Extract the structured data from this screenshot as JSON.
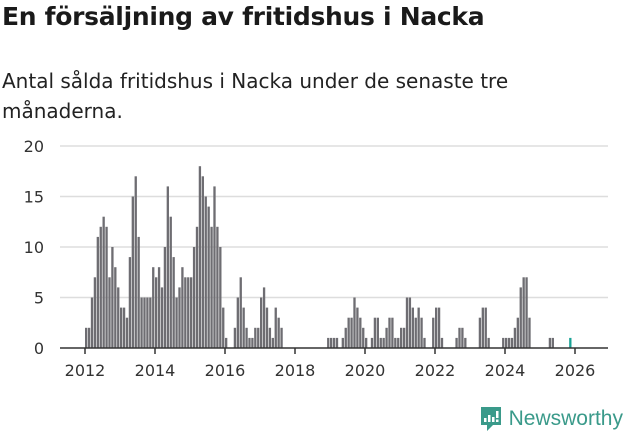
{
  "title": "En försäljning av fritidshus i Nacka",
  "subtitle": "Antal sålda fritidshus i Nacka under de senaste tre månaderna.",
  "brand": {
    "name": "Newsworthy",
    "color": "#3a9a8a"
  },
  "colors": {
    "bar": "#6e6d72",
    "highlight": "#1aa396",
    "grid": "#dddddd",
    "axis": "#333333"
  },
  "chart_data": {
    "type": "bar",
    "title": "En försäljning av fritidshus i Nacka",
    "subtitle": "Antal sålda fritidshus i Nacka under de senaste tre månaderna.",
    "xlabel": "",
    "ylabel": "",
    "ylim": [
      0,
      20
    ],
    "yticks": [
      0,
      5,
      10,
      15,
      20
    ],
    "xticks": [
      "2012",
      "2014",
      "2016",
      "2018",
      "2020",
      "2022",
      "2024",
      "2026"
    ],
    "grid": true,
    "annotation": {
      "label": "1",
      "index": 170
    },
    "start": "2012-01",
    "values": [
      2,
      2,
      5,
      7,
      11,
      12,
      13,
      12,
      7,
      10,
      8,
      6,
      4,
      4,
      3,
      9,
      15,
      17,
      11,
      5,
      5,
      5,
      5,
      8,
      7,
      8,
      6,
      10,
      16,
      13,
      9,
      5,
      6,
      8,
      7,
      7,
      7,
      10,
      12,
      18,
      17,
      15,
      14,
      12,
      16,
      12,
      10,
      4,
      1,
      0,
      0,
      2,
      5,
      7,
      4,
      2,
      1,
      1,
      2,
      2,
      5,
      6,
      4,
      2,
      1,
      4,
      3,
      2,
      0,
      0,
      0,
      0,
      0,
      0,
      0,
      0,
      0,
      0,
      0,
      0,
      0,
      0,
      0,
      1,
      1,
      1,
      1,
      0,
      1,
      2,
      3,
      3,
      5,
      4,
      3,
      2,
      1,
      0,
      1,
      3,
      3,
      1,
      1,
      2,
      3,
      3,
      1,
      1,
      2,
      2,
      5,
      5,
      4,
      3,
      4,
      3,
      1,
      0,
      0,
      3,
      4,
      4,
      1,
      0,
      0,
      0,
      0,
      1,
      2,
      2,
      1,
      0,
      0,
      0,
      0,
      3,
      4,
      4,
      1,
      0,
      0,
      0,
      0,
      1,
      1,
      1,
      1,
      2,
      3,
      6,
      7,
      7,
      3,
      0,
      0,
      0,
      0,
      0,
      0,
      1,
      1,
      0,
      0,
      0,
      0,
      0,
      1
    ]
  }
}
